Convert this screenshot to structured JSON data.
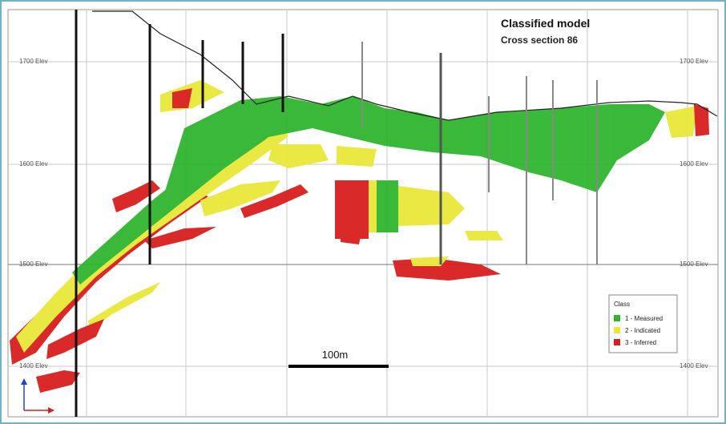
{
  "header": {
    "title": "Classified model",
    "subtitle": "Cross section 86"
  },
  "elevation_labels": {
    "left": [
      "1700 Elev",
      "1600 Elev",
      "1500 Elev",
      "1400 Elev"
    ],
    "right": [
      "1700 Elev",
      "1600 Elev",
      "1500 Elev",
      "1400 Elev"
    ]
  },
  "scale_bar": {
    "label": "100m"
  },
  "legend": {
    "title": "Class",
    "items": [
      {
        "label": "1 - Measured"
      },
      {
        "label": "2 - Indicated"
      },
      {
        "label": "3 - Inferred"
      }
    ]
  }
}
